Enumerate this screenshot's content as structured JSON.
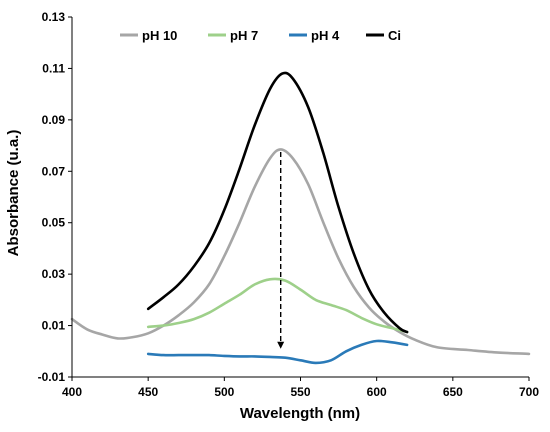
{
  "chart_data": {
    "type": "line",
    "title": "",
    "xlabel": "Wavelength (nm)",
    "ylabel": "Absorbance (u.a.)",
    "xlim": [
      400,
      700
    ],
    "ylim": [
      -0.01,
      0.13
    ],
    "xticks": [
      400,
      450,
      500,
      550,
      600,
      650,
      700
    ],
    "yticks": [
      -0.01,
      0.01,
      0.03,
      0.05,
      0.07,
      0.09,
      0.11,
      0.13
    ],
    "ytick_labels": [
      "-0.01",
      "0.01",
      "0.03",
      "0.05",
      "0.07",
      "0.09",
      "0.11",
      "0.13"
    ],
    "grid": false,
    "legend_position": "top",
    "series": [
      {
        "name": "pH 10",
        "color": "#a6a6a6",
        "x": [
          400,
          410,
          420,
          430,
          440,
          450,
          460,
          470,
          480,
          490,
          500,
          510,
          520,
          530,
          537,
          545,
          555,
          565,
          575,
          585,
          595,
          605,
          615,
          625,
          640,
          660,
          680,
          700
        ],
        "y": [
          0.0125,
          0.0085,
          0.0065,
          0.005,
          0.0055,
          0.007,
          0.01,
          0.014,
          0.019,
          0.026,
          0.037,
          0.05,
          0.064,
          0.075,
          0.0785,
          0.075,
          0.065,
          0.05,
          0.036,
          0.025,
          0.017,
          0.0115,
          0.0075,
          0.0045,
          0.0015,
          0.0005,
          -0.0005,
          -0.001
        ]
      },
      {
        "name": "pH 7",
        "color": "#9ed08a",
        "x": [
          450,
          460,
          470,
          480,
          490,
          500,
          510,
          520,
          530,
          540,
          550,
          560,
          570,
          580,
          590,
          600,
          610,
          620
        ],
        "y": [
          0.0095,
          0.01,
          0.011,
          0.0125,
          0.015,
          0.0185,
          0.022,
          0.026,
          0.028,
          0.0275,
          0.024,
          0.02,
          0.018,
          0.016,
          0.013,
          0.0105,
          0.009,
          0.0075
        ]
      },
      {
        "name": "pH 4",
        "color": "#2a7ab8",
        "x": [
          450,
          460,
          470,
          480,
          490,
          500,
          510,
          520,
          530,
          540,
          550,
          560,
          570,
          580,
          590,
          600,
          610,
          620
        ],
        "y": [
          -0.001,
          -0.0015,
          -0.0015,
          -0.0015,
          -0.0015,
          -0.0018,
          -0.002,
          -0.002,
          -0.0022,
          -0.0025,
          -0.0035,
          -0.0045,
          -0.0035,
          0.0,
          0.0025,
          0.004,
          0.0035,
          0.0025
        ]
      },
      {
        "name": "Ci",
        "color": "#000000",
        "x": [
          450,
          460,
          470,
          480,
          490,
          500,
          510,
          520,
          530,
          538,
          545,
          555,
          565,
          575,
          585,
          595,
          605,
          615,
          620
        ],
        "y": [
          0.0165,
          0.021,
          0.026,
          0.033,
          0.042,
          0.055,
          0.071,
          0.088,
          0.102,
          0.108,
          0.106,
          0.095,
          0.077,
          0.056,
          0.038,
          0.024,
          0.015,
          0.009,
          0.0075
        ]
      }
    ],
    "annotations": [
      {
        "type": "dashed-arrow",
        "x": 537,
        "y_from": 0.0775,
        "y_to": 0.001,
        "color": "#000000"
      }
    ]
  }
}
